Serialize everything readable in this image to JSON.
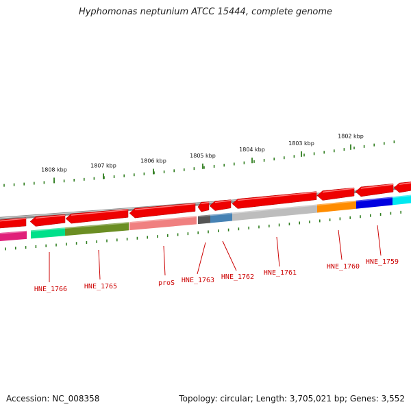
{
  "title": "Hyphomonas neptunium ATCC 15444, complete genome",
  "footer": {
    "accession": "Accession: NC_008358",
    "topology": "Topology: circular; Length: 3,705,021 bp; Genes: 3,552"
  },
  "colors": {
    "backbone": "#8c8c8c",
    "tick": "#2e7d1e",
    "forward_gene": "#ee0000",
    "label": "#cc0000"
  },
  "kbp_ticks": [
    {
      "label": "1808 kbp"
    },
    {
      "label": "1807 kbp"
    },
    {
      "label": "1806 kbp"
    },
    {
      "label": "1805 kbp"
    },
    {
      "label": "1804 kbp"
    },
    {
      "label": "1803 kbp"
    },
    {
      "label": "1802 kbp"
    }
  ],
  "genes": [
    {
      "label": "HNE_1766",
      "color": "#00e08a"
    },
    {
      "label": "HNE_1765",
      "color": "#6b8e23"
    },
    {
      "label": "proS",
      "color": "#f08080"
    },
    {
      "label": "HNE_1763",
      "color": "#555555"
    },
    {
      "label": "HNE_1762",
      "color": "#4682b4"
    },
    {
      "label": "HNE_1761",
      "color": "#bdbdbd"
    },
    {
      "label": "HNE_1760",
      "color": "#ff8c00"
    },
    {
      "label": "HNE_1759",
      "color": "#0000e0"
    }
  ],
  "edge_segments": {
    "left_color": "#e0207a",
    "right_color": "#00e8f0"
  }
}
